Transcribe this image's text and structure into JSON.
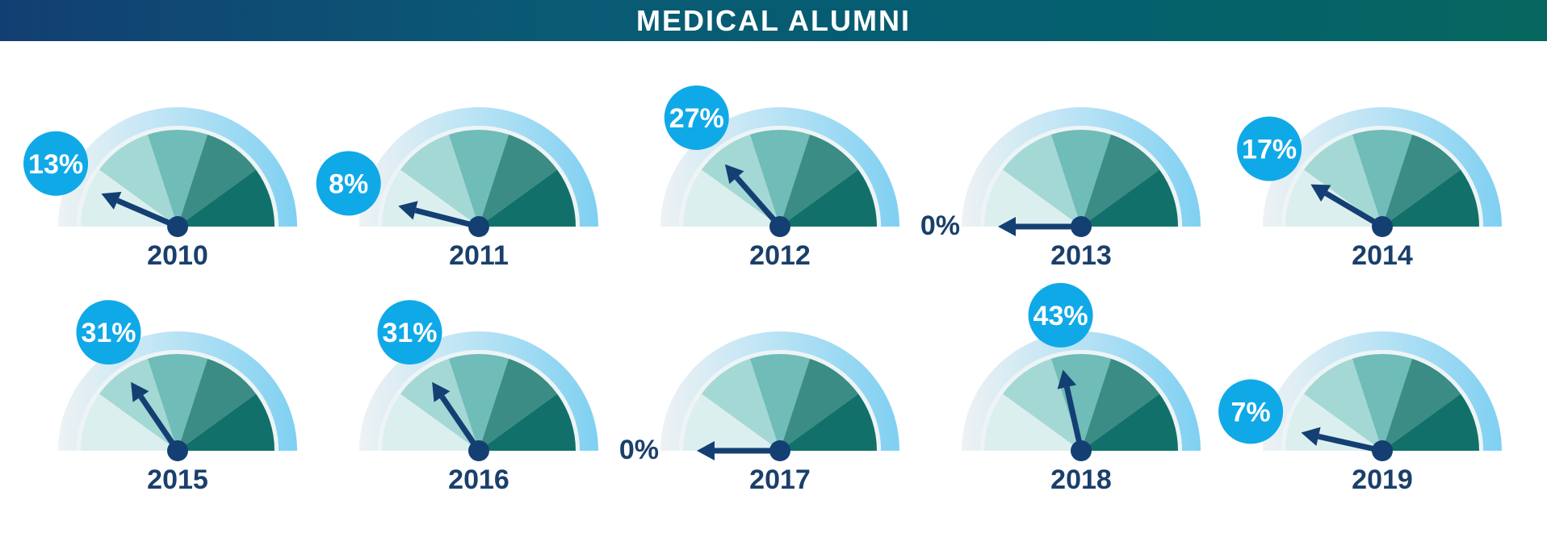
{
  "title": "MEDICAL ALUMNI",
  "colors": {
    "title_bar_start": "#123f73",
    "title_bar_end": "#06675f",
    "rim": "#7fd0f2",
    "rim_light": "#e6eef1",
    "segment_1": "#dcefef",
    "segment_2": "#a4d8d5",
    "segment_3": "#6fbcb8",
    "segment_4": "#3b8c84",
    "segment_5": "#11716a",
    "needle": "#143f73",
    "bubble": "#10a9e8",
    "label_text": "#1b3f6b"
  },
  "chart_data": {
    "type": "gauge",
    "title": "MEDICAL ALUMNI",
    "unit": "%",
    "range": [
      0,
      100
    ],
    "gauges": [
      {
        "year": "2010",
        "value": 13,
        "label": "13%"
      },
      {
        "year": "2011",
        "value": 8,
        "label": "8%"
      },
      {
        "year": "2012",
        "value": 27,
        "label": "27%"
      },
      {
        "year": "2013",
        "value": 0,
        "label": "0%"
      },
      {
        "year": "2014",
        "value": 17,
        "label": "17%"
      },
      {
        "year": "2015",
        "value": 31,
        "label": "31%"
      },
      {
        "year": "2016",
        "value": 31,
        "label": "31%"
      },
      {
        "year": "2017",
        "value": 0,
        "label": "0%"
      },
      {
        "year": "2018",
        "value": 43,
        "label": "43%"
      },
      {
        "year": "2019",
        "value": 7,
        "label": "7%"
      }
    ]
  }
}
